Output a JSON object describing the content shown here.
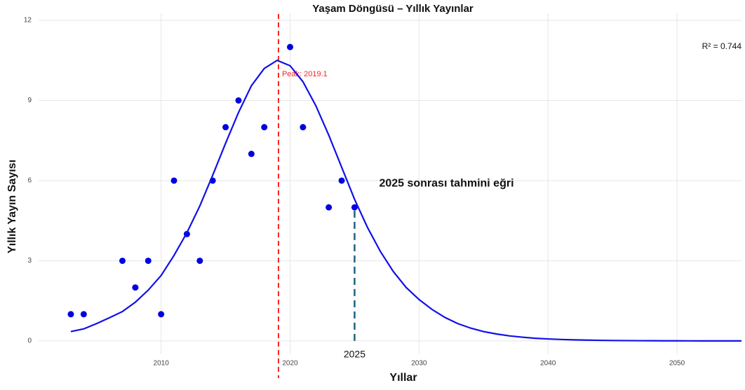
{
  "chart_data": {
    "type": "scatter",
    "title": "Yaşam Döngüsü – Yıllık Yayınlar",
    "x_label": "Yıllar",
    "y_label": "Yıllık Yayın Sayısı",
    "xlim": [
      2000.5,
      2055
    ],
    "ylim": [
      -0.5,
      12
    ],
    "xticks": [
      2010,
      2020,
      2030,
      2040,
      2050
    ],
    "yticks": [
      0,
      3,
      6,
      9,
      12
    ],
    "grid": true,
    "series": [
      {
        "kind": "points",
        "color": "#0000e0",
        "x": [
          2003,
          2004,
          2007,
          2008,
          2009,
          2010,
          2011,
          2012,
          2013,
          2014,
          2015,
          2016,
          2017,
          2018,
          2020,
          2021,
          2023,
          2024,
          2025
        ],
        "values": [
          1,
          1,
          3,
          2,
          3,
          1,
          6,
          4,
          3,
          6,
          8,
          9,
          7,
          8,
          11,
          8,
          5,
          6,
          5
        ]
      },
      {
        "kind": "line",
        "color": "#1010e8",
        "x": [
          2003,
          2004,
          2005,
          2006,
          2007,
          2008,
          2009,
          2010,
          2011,
          2012,
          2013,
          2014,
          2015,
          2016,
          2017,
          2018,
          2019,
          2020,
          2021,
          2022,
          2023,
          2024,
          2025,
          2026,
          2027,
          2028,
          2029,
          2030,
          2031,
          2032,
          2033,
          2034,
          2035,
          2036,
          2037,
          2038,
          2039,
          2040,
          2041,
          2042,
          2043,
          2044,
          2045,
          2046,
          2047,
          2048,
          2049,
          2050,
          2051,
          2052,
          2053,
          2054,
          2055
        ],
        "values": [
          0.35,
          0.45,
          0.65,
          0.87,
          1.1,
          1.45,
          1.9,
          2.45,
          3.2,
          4.05,
          5.05,
          6.2,
          7.4,
          8.55,
          9.55,
          10.2,
          10.5,
          10.3,
          9.7,
          8.8,
          7.7,
          6.5,
          5.3,
          4.25,
          3.35,
          2.6,
          2.0,
          1.55,
          1.18,
          0.88,
          0.65,
          0.48,
          0.35,
          0.26,
          0.19,
          0.14,
          0.1,
          0.075,
          0.055,
          0.04,
          0.03,
          0.022,
          0.016,
          0.012,
          0.009,
          0.007,
          0.005,
          0.004,
          0.003,
          0.002,
          0.002,
          0.001,
          0.001
        ]
      }
    ],
    "peak": {
      "value": 2019.1,
      "label": "Peak: 2019.1",
      "color": "#ff2020"
    },
    "forecast": {
      "x": 2025,
      "y": 5,
      "label": "2025",
      "text": "2025 sonrası tahmini eğri",
      "color": "#1f6080"
    },
    "r2_label": "R² = 0.744"
  }
}
